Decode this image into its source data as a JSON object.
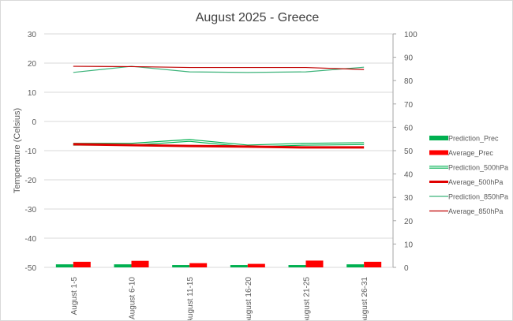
{
  "chart_data": {
    "type": "bar+line combo",
    "title": "August 2025 - Greece",
    "ylabel": "Temperature (Celsius)",
    "y2label": "",
    "ylim": [
      -50,
      30
    ],
    "y2lim": [
      0,
      100
    ],
    "yticks": [
      "30",
      "20",
      "10",
      "0",
      "-10",
      "-20",
      "-30",
      "-40",
      "-50"
    ],
    "y2ticks": [
      "100",
      "90",
      "80",
      "70",
      "60",
      "50",
      "40",
      "30",
      "20",
      "10",
      "0"
    ],
    "categories": [
      "August 1-5",
      "August 6-10",
      "August 11-15",
      "August 16-20",
      "August 21-25",
      "August 26-31"
    ],
    "grid": true,
    "legend": "right",
    "series": [
      {
        "name": "Prediction_Prec",
        "kind": "bar",
        "axis": "right",
        "color": "#00b050",
        "values": [
          1.3,
          1.3,
          1.0,
          1.0,
          1.0,
          1.3
        ]
      },
      {
        "name": "Average_Prec",
        "kind": "bar",
        "axis": "right",
        "color": "#ff0000",
        "values": [
          2.4,
          2.8,
          1.8,
          1.5,
          2.9,
          2.4
        ]
      },
      {
        "name": "Prediction_500hPa",
        "kind": "line",
        "axis": "left",
        "color": "#00b050",
        "style": "double",
        "values": [
          -7.8,
          -7.8,
          -6.5,
          -8.4,
          -7.8,
          -7.6
        ]
      },
      {
        "name": "Average_500hPa",
        "kind": "line",
        "axis": "left",
        "color": "#e00000",
        "style": "thick",
        "values": [
          -7.8,
          -8.1,
          -8.4,
          -8.6,
          -8.9,
          -8.9
        ]
      },
      {
        "name": "Prediction_850hPa",
        "kind": "line",
        "axis": "left",
        "color": "#3cb37a",
        "style": "thin",
        "values": [
          16.8,
          18.9,
          17.0,
          16.8,
          17.0,
          18.6
        ]
      },
      {
        "name": "Average_850hPa",
        "kind": "line",
        "axis": "left",
        "color": "#c00000",
        "style": "thin",
        "values": [
          18.9,
          18.8,
          18.5,
          18.5,
          18.5,
          17.8
        ]
      }
    ]
  }
}
